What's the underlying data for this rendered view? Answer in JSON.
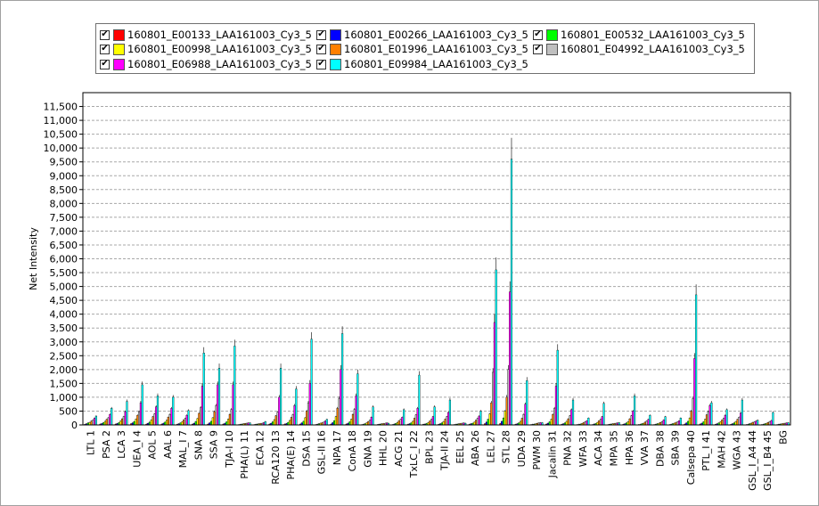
{
  "legend": {
    "items": [
      {
        "label": "160801_E00133_LAA161003_Cy3_5",
        "color": "#ff0000",
        "checked": "✔"
      },
      {
        "label": "160801_E00266_LAA161003_Cy3_5",
        "color": "#0000ff",
        "checked": "✔"
      },
      {
        "label": "160801_E00532_LAA161003_Cy3_5",
        "color": "#00ff00",
        "checked": "✔"
      },
      {
        "label": "160801_E00998_LAA161003_Cy3_5",
        "color": "#ffff00",
        "checked": "✔"
      },
      {
        "label": "160801_E01996_LAA161003_Cy3_5",
        "color": "#ff8000",
        "checked": "✔"
      },
      {
        "label": "160801_E04992_LAA161003_Cy3_5",
        "color": "#c0c0c0",
        "checked": "✔"
      },
      {
        "label": "160801_E06988_LAA161003_Cy3_5",
        "color": "#ff00ff",
        "checked": "✔"
      },
      {
        "label": "160801_E09984_LAA161003_Cy3_5",
        "color": "#00ffff",
        "checked": "✔"
      }
    ]
  },
  "chart_data": {
    "type": "bar",
    "ylabel": "Net Intensity",
    "xlabel": "",
    "ylim": [
      0,
      12000
    ],
    "yticks": [
      "0",
      "500",
      "1,000",
      "1,500",
      "2,000",
      "2,500",
      "3,000",
      "3,500",
      "4,000",
      "4,500",
      "5,000",
      "5,500",
      "6,000",
      "6,500",
      "7,000",
      "7,500",
      "8,000",
      "8,500",
      "9,000",
      "9,500",
      "10,000",
      "10,500",
      "11,000",
      "11,500"
    ],
    "grid": true,
    "categories": [
      "LTL 1",
      "PSA 2",
      "LCA 3",
      "UEA_I 4",
      "AOL 5",
      "AAL 6",
      "MAL_I 7",
      "SNA 8",
      "SSA 9",
      "TJA-I 10",
      "PHA(L) 11",
      "ECA 12",
      "RCA120 13",
      "PHA(E) 14",
      "DSA 15",
      "GSL-II 16",
      "NPA 17",
      "ConA 18",
      "GNA 19",
      "HHL 20",
      "ACG 21",
      "TxLC_I 22",
      "BPL 23",
      "TJA-II 24",
      "EEL 25",
      "ABA 26",
      "LEL 27",
      "STL 28",
      "UDA 29",
      "PWM 30",
      "Jacalin 31",
      "PNA 32",
      "WFA 33",
      "ACA 34",
      "MPA 35",
      "HPA 36",
      "VVA 37",
      "DBA 38",
      "SBA 39",
      "Calsepa 40",
      "PTL_I 41",
      "MAH 42",
      "WGA 43",
      "GSL_I_A4 44",
      "GSL_I_B4 45",
      "BG"
    ],
    "series": [
      {
        "name": "160801_E00133_LAA161003_Cy3_5",
        "values": [
          20,
          30,
          30,
          40,
          30,
          30,
          20,
          30,
          30,
          30,
          10,
          10,
          30,
          30,
          30,
          10,
          30,
          30,
          10,
          10,
          10,
          20,
          20,
          20,
          10,
          20,
          40,
          50,
          20,
          10,
          30,
          20,
          10,
          10,
          10,
          20,
          10,
          10,
          10,
          30,
          30,
          20,
          20,
          10,
          10,
          10
        ]
      },
      {
        "name": "160801_E00266_LAA161003_Cy3_5",
        "values": [
          40,
          50,
          50,
          70,
          60,
          60,
          40,
          60,
          70,
          60,
          20,
          20,
          60,
          50,
          70,
          20,
          80,
          60,
          20,
          20,
          30,
          40,
          30,
          40,
          20,
          40,
          100,
          130,
          40,
          20,
          60,
          40,
          20,
          30,
          20,
          40,
          20,
          20,
          20,
          70,
          60,
          40,
          40,
          20,
          20,
          20
        ]
      },
      {
        "name": "160801_E00532_LAA161003_Cy3_5",
        "values": [
          70,
          80,
          80,
          120,
          100,
          100,
          70,
          120,
          130,
          110,
          30,
          30,
          110,
          90,
          130,
          40,
          150,
          110,
          40,
          30,
          50,
          70,
          50,
          70,
          30,
          60,
          200,
          250,
          70,
          30,
          110,
          70,
          30,
          50,
          30,
          70,
          40,
          40,
          40,
          130,
          110,
          70,
          70,
          40,
          40,
          30
        ]
      },
      {
        "name": "160801_E00998_LAA161003_Cy3_5",
        "values": [
          90,
          130,
          140,
          210,
          180,
          170,
          110,
          230,
          260,
          210,
          40,
          40,
          190,
          160,
          260,
          60,
          300,
          200,
          70,
          40,
          90,
          130,
          80,
          120,
          40,
          100,
          400,
          500,
          130,
          40,
          200,
          130,
          50,
          90,
          40,
          120,
          60,
          60,
          60,
          250,
          200,
          110,
          120,
          60,
          60,
          40
        ]
      },
      {
        "name": "160801_E01996_LAA161003_Cy3_5",
        "values": [
          140,
          200,
          220,
          350,
          300,
          280,
          180,
          420,
          480,
          380,
          50,
          50,
          330,
          270,
          500,
          80,
          600,
          380,
          120,
          50,
          150,
          240,
          140,
          210,
          50,
          170,
          800,
          1000,
          240,
          60,
          380,
          220,
          80,
          150,
          50,
          220,
          100,
          90,
          90,
          500,
          360,
          180,
          200,
          90,
          90,
          50
        ]
      },
      {
        "name": "160801_E04992_LAA161003_Cy3_5",
        "values": [
          180,
          260,
          300,
          480,
          400,
          380,
          240,
          620,
          700,
          560,
          60,
          60,
          460,
          370,
          800,
          100,
          950,
          560,
          170,
          60,
          200,
          360,
          200,
          300,
          60,
          240,
          1900,
          2000,
          380,
          70,
          600,
          330,
          110,
          200,
          60,
          330,
          140,
          120,
          110,
          950,
          480,
          240,
          280,
          110,
          120,
          60
        ]
      },
      {
        "name": "160801_E06988_LAA161003_Cy3_5",
        "values": [
          250,
          380,
          480,
          800,
          650,
          600,
          350,
          1400,
          1450,
          1450,
          70,
          80,
          1000,
          700,
          1500,
          140,
          2000,
          1050,
          280,
          70,
          280,
          600,
          300,
          450,
          70,
          320,
          3700,
          4800,
          750,
          80,
          1400,
          550,
          150,
          300,
          70,
          500,
          200,
          180,
          150,
          2400,
          700,
          350,
          430,
          140,
          160,
          70
        ]
      },
      {
        "name": "160801_E09984_LAA161003_Cy3_5",
        "values": [
          320,
          600,
          850,
          1450,
          1050,
          1000,
          520,
          2600,
          2050,
          2850,
          70,
          120,
          2050,
          1300,
          3100,
          200,
          3300,
          1850,
          650,
          60,
          550,
          1800,
          650,
          900,
          60,
          500,
          5600,
          9600,
          1600,
          80,
          2700,
          900,
          250,
          780,
          80,
          1050,
          350,
          300,
          250,
          4700,
          800,
          550,
          900,
          170,
          450,
          80
        ]
      }
    ]
  }
}
